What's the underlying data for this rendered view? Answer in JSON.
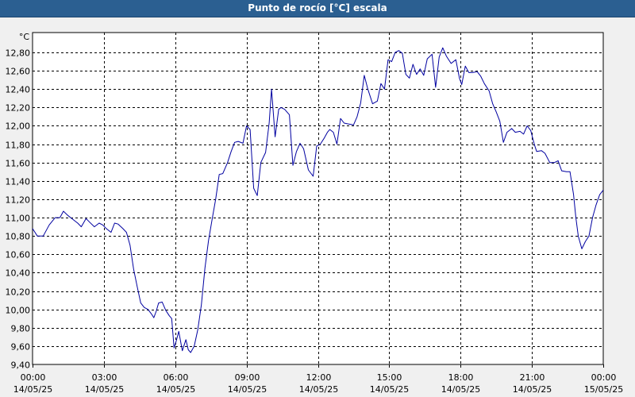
{
  "window": {
    "title": "Punto de rocío [°C] escala"
  },
  "chart_data": {
    "type": "line",
    "title": "Punto de rocío [°C] escala",
    "ylabel": "°C",
    "xlabel": "",
    "ylim": [
      9.4,
      13.0
    ],
    "xlim": [
      0,
      24
    ],
    "grid": true,
    "y_ticks": [
      "9,40",
      "9,60",
      "9,80",
      "10,00",
      "10,20",
      "10,40",
      "10,60",
      "10,80",
      "11,00",
      "11,20",
      "11,40",
      "11,60",
      "11,80",
      "12,00",
      "12,20",
      "12,40",
      "12,60",
      "12,80"
    ],
    "x_ticks": [
      {
        "time": "00:00",
        "date": "14/05/25"
      },
      {
        "time": "03:00",
        "date": "14/05/25"
      },
      {
        "time": "06:00",
        "date": "14/05/25"
      },
      {
        "time": "09:00",
        "date": "14/05/25"
      },
      {
        "time": "12:00",
        "date": "14/05/25"
      },
      {
        "time": "15:00",
        "date": "14/05/25"
      },
      {
        "time": "18:00",
        "date": "14/05/25"
      },
      {
        "time": "21:00",
        "date": "14/05/25"
      },
      {
        "time": "00:00",
        "date": "15/05/25"
      }
    ],
    "series": [
      {
        "color": "#0000a0",
        "points": [
          [
            0.0,
            10.88
          ],
          [
            0.2,
            10.8
          ],
          [
            0.45,
            10.8
          ],
          [
            0.7,
            10.92
          ],
          [
            0.95,
            11.0
          ],
          [
            1.15,
            11.0
          ],
          [
            1.3,
            11.07
          ],
          [
            1.5,
            11.02
          ],
          [
            1.7,
            10.98
          ],
          [
            1.9,
            10.94
          ],
          [
            2.05,
            10.9
          ],
          [
            2.25,
            10.99
          ],
          [
            2.4,
            10.95
          ],
          [
            2.6,
            10.9
          ],
          [
            2.8,
            10.94
          ],
          [
            2.95,
            10.92
          ],
          [
            3.1,
            10.88
          ],
          [
            3.3,
            10.84
          ],
          [
            3.45,
            10.94
          ],
          [
            3.6,
            10.93
          ],
          [
            3.8,
            10.88
          ],
          [
            3.95,
            10.84
          ],
          [
            4.1,
            10.7
          ],
          [
            4.25,
            10.44
          ],
          [
            4.4,
            10.25
          ],
          [
            4.55,
            10.07
          ],
          [
            4.7,
            10.02
          ],
          [
            4.85,
            10.0
          ],
          [
            5.0,
            9.95
          ],
          [
            5.1,
            9.91
          ],
          [
            5.2,
            9.98
          ],
          [
            5.3,
            10.07
          ],
          [
            5.45,
            10.08
          ],
          [
            5.6,
            9.99
          ],
          [
            5.75,
            9.93
          ],
          [
            5.85,
            9.9
          ],
          [
            5.95,
            9.58
          ],
          [
            6.05,
            9.66
          ],
          [
            6.15,
            9.76
          ],
          [
            6.3,
            9.55
          ],
          [
            6.45,
            9.67
          ],
          [
            6.55,
            9.56
          ],
          [
            6.65,
            9.53
          ],
          [
            6.8,
            9.6
          ],
          [
            6.95,
            9.78
          ],
          [
            7.1,
            10.05
          ],
          [
            7.25,
            10.45
          ],
          [
            7.4,
            10.75
          ],
          [
            7.55,
            10.98
          ],
          [
            7.7,
            11.2
          ],
          [
            7.85,
            11.47
          ],
          [
            8.0,
            11.48
          ],
          [
            8.2,
            11.6
          ],
          [
            8.35,
            11.72
          ],
          [
            8.5,
            11.82
          ],
          [
            8.65,
            11.83
          ],
          [
            8.85,
            11.81
          ],
          [
            9.0,
            12.0
          ],
          [
            9.15,
            11.96
          ],
          [
            9.3,
            11.32
          ],
          [
            9.45,
            11.24
          ],
          [
            9.6,
            11.6
          ],
          [
            9.8,
            11.71
          ],
          [
            9.95,
            12.03
          ],
          [
            10.05,
            12.4
          ],
          [
            10.2,
            11.88
          ],
          [
            10.35,
            12.18
          ],
          [
            10.45,
            12.2
          ],
          [
            10.6,
            12.18
          ],
          [
            10.8,
            12.12
          ],
          [
            10.95,
            11.57
          ],
          [
            11.1,
            11.72
          ],
          [
            11.25,
            11.81
          ],
          [
            11.4,
            11.75
          ],
          [
            11.6,
            11.52
          ],
          [
            11.8,
            11.45
          ],
          [
            11.95,
            11.78
          ],
          [
            12.1,
            11.8
          ],
          [
            12.25,
            11.86
          ],
          [
            12.4,
            11.93
          ],
          [
            12.5,
            11.96
          ],
          [
            12.65,
            11.93
          ],
          [
            12.8,
            11.8
          ],
          [
            12.95,
            12.08
          ],
          [
            13.1,
            12.03
          ],
          [
            13.3,
            12.02
          ],
          [
            13.5,
            12.01
          ],
          [
            13.65,
            12.1
          ],
          [
            13.8,
            12.25
          ],
          [
            13.95,
            12.55
          ],
          [
            14.1,
            12.4
          ],
          [
            14.3,
            12.24
          ],
          [
            14.5,
            12.27
          ],
          [
            14.65,
            12.46
          ],
          [
            14.8,
            12.4
          ],
          [
            14.95,
            12.72
          ],
          [
            15.1,
            12.7
          ],
          [
            15.25,
            12.8
          ],
          [
            15.4,
            12.82
          ],
          [
            15.55,
            12.79
          ],
          [
            15.7,
            12.56
          ],
          [
            15.85,
            12.52
          ],
          [
            16.0,
            12.67
          ],
          [
            16.15,
            12.56
          ],
          [
            16.3,
            12.62
          ],
          [
            16.45,
            12.55
          ],
          [
            16.6,
            12.73
          ],
          [
            16.8,
            12.78
          ],
          [
            16.95,
            12.42
          ],
          [
            17.1,
            12.75
          ],
          [
            17.25,
            12.85
          ],
          [
            17.4,
            12.76
          ],
          [
            17.6,
            12.68
          ],
          [
            17.8,
            12.72
          ],
          [
            17.95,
            12.52
          ],
          [
            18.05,
            12.45
          ],
          [
            18.2,
            12.65
          ],
          [
            18.35,
            12.58
          ],
          [
            18.5,
            12.58
          ],
          [
            18.7,
            12.59
          ],
          [
            18.85,
            12.54
          ],
          [
            19.0,
            12.46
          ],
          [
            19.2,
            12.38
          ],
          [
            19.35,
            12.24
          ],
          [
            19.5,
            12.15
          ],
          [
            19.65,
            12.05
          ],
          [
            19.8,
            11.82
          ],
          [
            19.95,
            11.93
          ],
          [
            20.15,
            11.97
          ],
          [
            20.3,
            11.93
          ],
          [
            20.5,
            11.94
          ],
          [
            20.65,
            11.91
          ],
          [
            20.8,
            12.0
          ],
          [
            20.95,
            11.95
          ],
          [
            21.1,
            11.8
          ],
          [
            21.2,
            11.72
          ],
          [
            21.4,
            11.73
          ],
          [
            21.55,
            11.7
          ],
          [
            21.75,
            11.6
          ],
          [
            21.95,
            11.6
          ],
          [
            22.1,
            11.62
          ],
          [
            22.25,
            11.51
          ],
          [
            22.45,
            11.5
          ],
          [
            22.6,
            11.5
          ],
          [
            22.75,
            11.25
          ],
          [
            22.85,
            11.0
          ],
          [
            22.95,
            10.8
          ],
          [
            23.1,
            10.66
          ],
          [
            23.25,
            10.74
          ],
          [
            23.4,
            10.8
          ],
          [
            23.55,
            11.0
          ],
          [
            23.7,
            11.14
          ],
          [
            23.85,
            11.25
          ],
          [
            24.0,
            11.3
          ]
        ]
      }
    ]
  }
}
